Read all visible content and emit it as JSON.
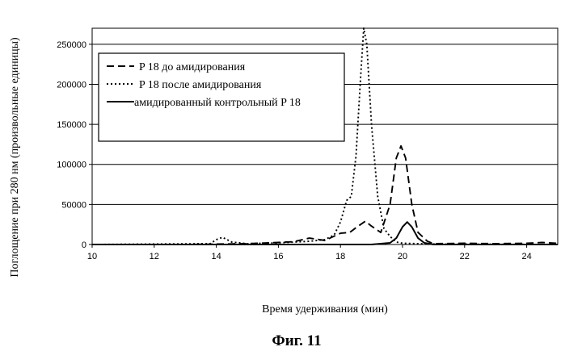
{
  "chart_data": {
    "type": "line",
    "xlabel": "Время удерживания (мин)",
    "ylabel": "Поглощение при 280 нм (произвольные единицы)",
    "xlim": [
      10,
      25
    ],
    "ylim": [
      0,
      270000
    ],
    "x_ticks": [
      10,
      12,
      14,
      16,
      18,
      20,
      22,
      24
    ],
    "x_tick_labels": [
      "10",
      "12",
      "14",
      "16",
      "18",
      "20",
      "22",
      "24"
    ],
    "y_ticks": [
      0,
      50000,
      100000,
      150000,
      200000,
      250000
    ],
    "y_tick_labels": [
      "0",
      "50000",
      "100000",
      "150000",
      "200000",
      "250000"
    ],
    "grid": "horizontal",
    "legend_position": "top-left",
    "series": [
      {
        "name": "P 18 до амидирования",
        "style": "dashed",
        "x": [
          10,
          13,
          14,
          15,
          16,
          16.5,
          17,
          17.5,
          18,
          18.3,
          18.5,
          18.8,
          19.0,
          19.3,
          19.6,
          19.8,
          19.95,
          20.1,
          20.3,
          20.5,
          20.8,
          21,
          22,
          23,
          24,
          24.5,
          25
        ],
        "y": [
          0,
          0,
          500,
          1000,
          2500,
          3500,
          8000,
          5000,
          14000,
          15000,
          21000,
          29000,
          23000,
          15000,
          50000,
          108000,
          123000,
          108000,
          50000,
          15000,
          4000,
          1000,
          1500,
          1000,
          1500,
          2500,
          1500
        ]
      },
      {
        "name": "P 18 после амидирования",
        "style": "dotted",
        "x": [
          10,
          13.8,
          14,
          14.2,
          14.5,
          15,
          16,
          17,
          17.5,
          17.8,
          18.0,
          18.2,
          18.35,
          18.5,
          18.65,
          18.75,
          18.85,
          19.0,
          19.2,
          19.4,
          19.6,
          19.8,
          20,
          20.5,
          21,
          25
        ],
        "y": [
          0,
          1000,
          6000,
          9000,
          3000,
          1000,
          2000,
          4000,
          6000,
          12000,
          28000,
          55000,
          60000,
          110000,
          210000,
          270000,
          250000,
          150000,
          60000,
          20000,
          10000,
          3000,
          1500,
          1000,
          500,
          0
        ]
      },
      {
        "name": "амидированный контрольный P 18",
        "style": "solid",
        "x": [
          10,
          18,
          19,
          19.6,
          19.8,
          20.0,
          20.15,
          20.3,
          20.5,
          20.7,
          21,
          25
        ],
        "y": [
          0,
          0,
          0,
          2000,
          8000,
          22000,
          28000,
          22000,
          8000,
          2000,
          0,
          0
        ]
      }
    ]
  },
  "caption": "Фиг. 11"
}
